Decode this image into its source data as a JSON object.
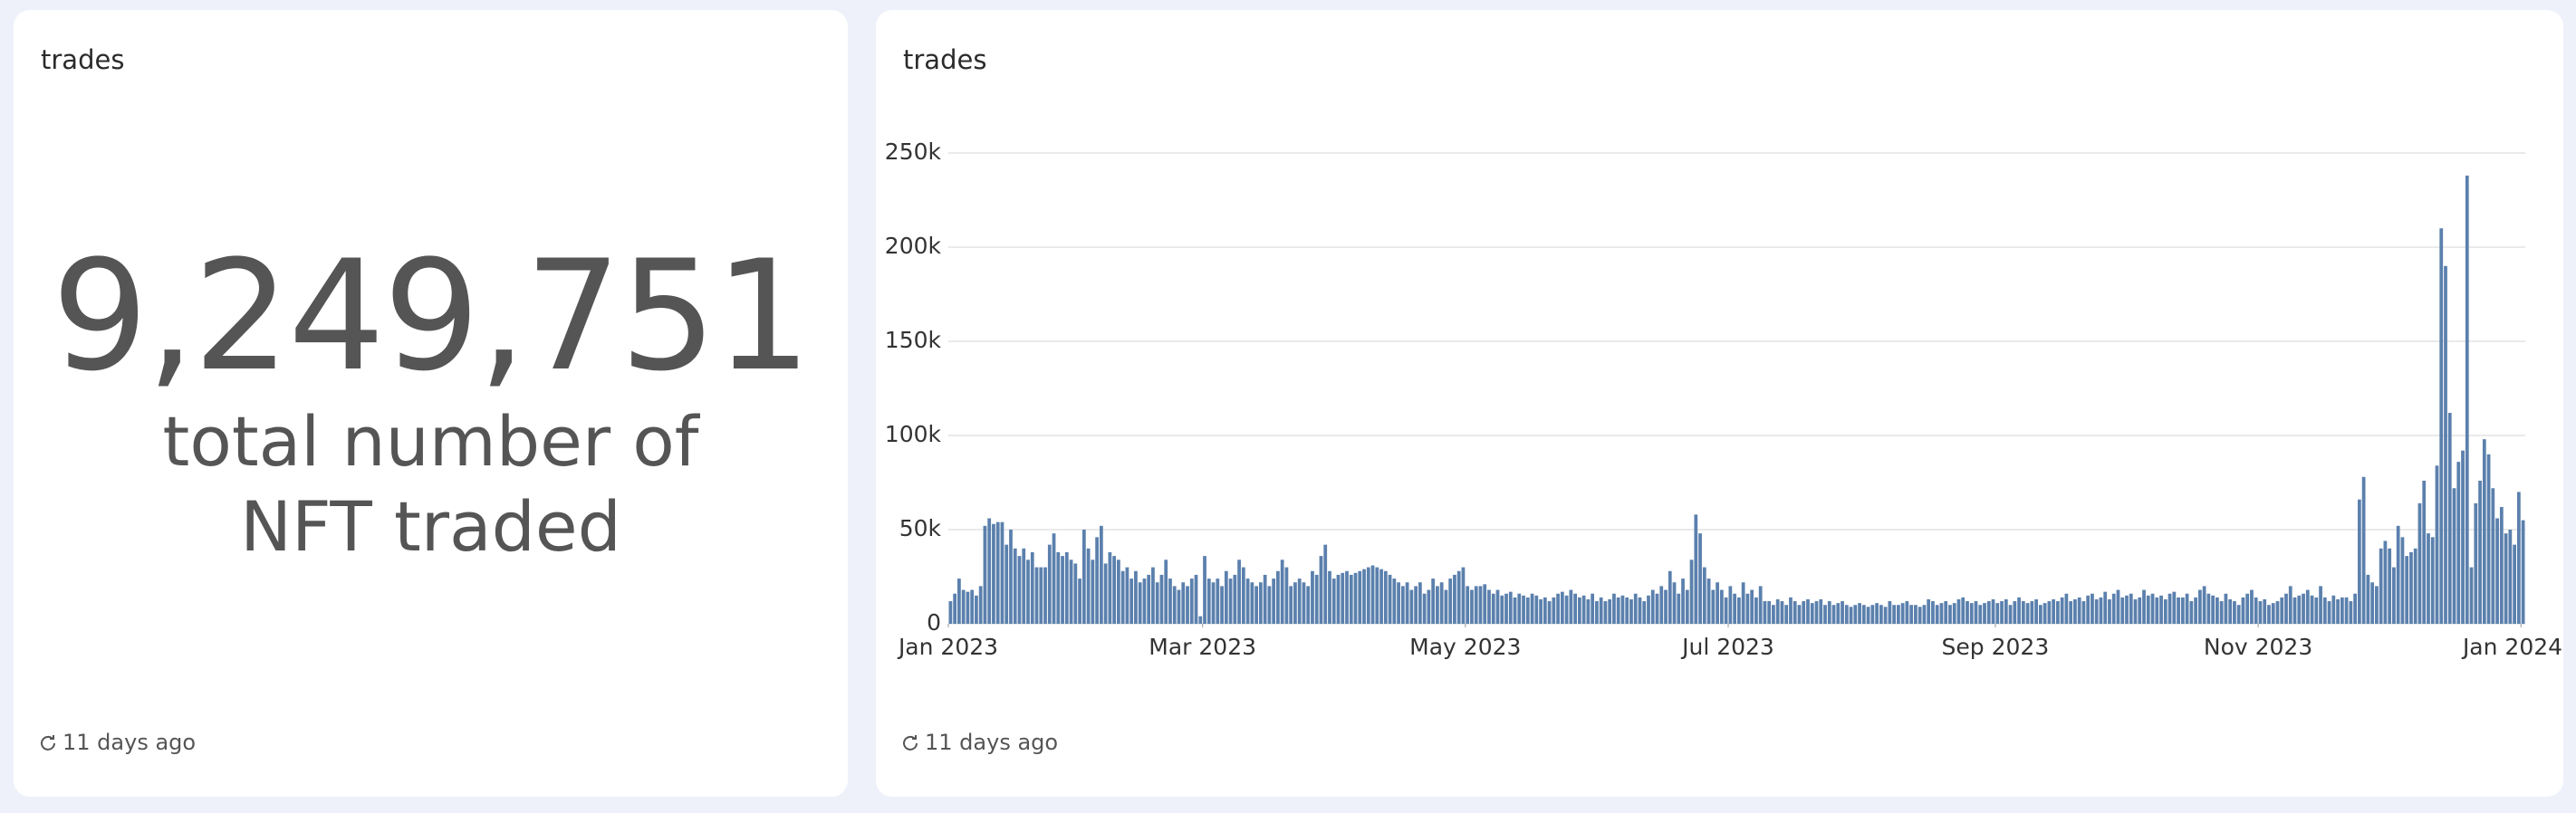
{
  "panels": [
    {
      "title": "trades",
      "value": "9,249,751",
      "label": "total number of NFT traded",
      "footer": "11 days ago"
    },
    {
      "title": "trades",
      "footer": "11 days ago"
    }
  ],
  "chart_data": {
    "type": "bar",
    "color": "#5b80ad",
    "grid": true,
    "xlim": [
      0,
      366
    ],
    "xticks": [
      {
        "value": 0,
        "label": "Jan 2023"
      },
      {
        "value": 59,
        "label": "Mar 2023"
      },
      {
        "value": 120,
        "label": "May 2023"
      },
      {
        "value": 181,
        "label": "Jul 2023"
      },
      {
        "value": 243,
        "label": "Sep 2023"
      },
      {
        "value": 304,
        "label": "Nov 2023"
      },
      {
        "value": 365,
        "label": "Jan 2024"
      }
    ],
    "ylim": [
      0,
      250000
    ],
    "yticks": [
      0,
      {
        "value": 50000,
        "label": "50k"
      },
      {
        "value": 100000,
        "label": "100k"
      },
      {
        "value": 150000,
        "label": "150k"
      },
      {
        "value": 200000,
        "label": "200k"
      },
      {
        "value": 250000,
        "label": "250k"
      }
    ],
    "values": [
      12000,
      16000,
      24000,
      18000,
      17000,
      18000,
      15000,
      20000,
      52000,
      56000,
      53000,
      54000,
      54000,
      42000,
      50000,
      40000,
      36000,
      40000,
      34000,
      38000,
      30000,
      30000,
      30000,
      42000,
      48000,
      38000,
      36000,
      38000,
      34000,
      32000,
      24000,
      50000,
      40000,
      34000,
      46000,
      52000,
      32000,
      38000,
      36000,
      34000,
      28000,
      30000,
      24000,
      28000,
      22000,
      24000,
      26000,
      30000,
      22000,
      26000,
      34000,
      24000,
      20000,
      18000,
      22000,
      20000,
      24000,
      26000,
      4000,
      36000,
      24000,
      22000,
      24000,
      20000,
      28000,
      24000,
      26000,
      34000,
      30000,
      24000,
      22000,
      20000,
      22000,
      26000,
      20000,
      24000,
      28000,
      34000,
      30000,
      20000,
      22000,
      24000,
      22000,
      20000,
      28000,
      26000,
      36000,
      42000,
      28000,
      24000,
      26000,
      27000,
      28000,
      26000,
      27000,
      28000,
      29000,
      30000,
      31000,
      30000,
      29000,
      28000,
      26000,
      24000,
      22000,
      20000,
      22000,
      18000,
      20000,
      22000,
      16000,
      18000,
      24000,
      20000,
      22000,
      18000,
      24000,
      26000,
      28000,
      30000,
      20000,
      18000,
      20000,
      20000,
      21000,
      18000,
      16000,
      18000,
      15000,
      16000,
      17000,
      14000,
      16000,
      15000,
      14000,
      16000,
      15000,
      13000,
      14000,
      12000,
      14000,
      16000,
      17000,
      15000,
      18000,
      16000,
      14000,
      15000,
      13000,
      16000,
      12000,
      14000,
      12000,
      13000,
      16000,
      14000,
      15000,
      14000,
      13000,
      16000,
      14000,
      12000,
      15000,
      18000,
      16000,
      20000,
      18000,
      28000,
      22000,
      16000,
      24000,
      18000,
      34000,
      58000,
      48000,
      30000,
      24000,
      18000,
      22000,
      18000,
      14000,
      20000,
      16000,
      14000,
      22000,
      16000,
      18000,
      14000,
      20000,
      12000,
      12000,
      10000,
      13000,
      12000,
      10000,
      14000,
      12000,
      10000,
      12000,
      13000,
      11000,
      12000,
      13000,
      10000,
      12000,
      10000,
      11000,
      12000,
      10000,
      9000,
      10000,
      11000,
      10000,
      9000,
      10000,
      11000,
      10000,
      9000,
      12000,
      10000,
      10000,
      11000,
      12000,
      10000,
      10000,
      9000,
      10000,
      13000,
      12000,
      10000,
      11000,
      12000,
      10000,
      11000,
      13000,
      14000,
      12000,
      11000,
      12000,
      10000,
      11000,
      12000,
      13000,
      11000,
      12000,
      13000,
      10000,
      12000,
      14000,
      12000,
      11000,
      12000,
      13000,
      10000,
      11000,
      12000,
      13000,
      12000,
      14000,
      16000,
      12000,
      13000,
      14000,
      12000,
      15000,
      16000,
      13000,
      14000,
      17000,
      13000,
      16000,
      18000,
      14000,
      15000,
      16000,
      13000,
      14000,
      18000,
      15000,
      16000,
      14000,
      15000,
      13000,
      16000,
      17000,
      14000,
      14000,
      16000,
      12000,
      14000,
      18000,
      20000,
      16000,
      15000,
      14000,
      12000,
      16000,
      13000,
      12000,
      10000,
      14000,
      16000,
      18000,
      14000,
      12000,
      13000,
      10000,
      11000,
      12000,
      14000,
      16000,
      20000,
      14000,
      15000,
      16000,
      18000,
      15000,
      14000,
      20000,
      14000,
      12000,
      15000,
      13000,
      14000,
      14000,
      12000,
      16000,
      66000,
      78000,
      26000,
      22000,
      20000,
      40000,
      44000,
      40000,
      30000,
      52000,
      46000,
      36000,
      38000,
      40000,
      64000,
      76000,
      48000,
      46000,
      84000,
      210000,
      190000,
      112000,
      72000,
      86000,
      92000,
      238000,
      30000,
      64000,
      76000,
      98000,
      90000,
      72000,
      56000,
      62000,
      48000,
      50000,
      42000,
      70000,
      55000
    ]
  }
}
